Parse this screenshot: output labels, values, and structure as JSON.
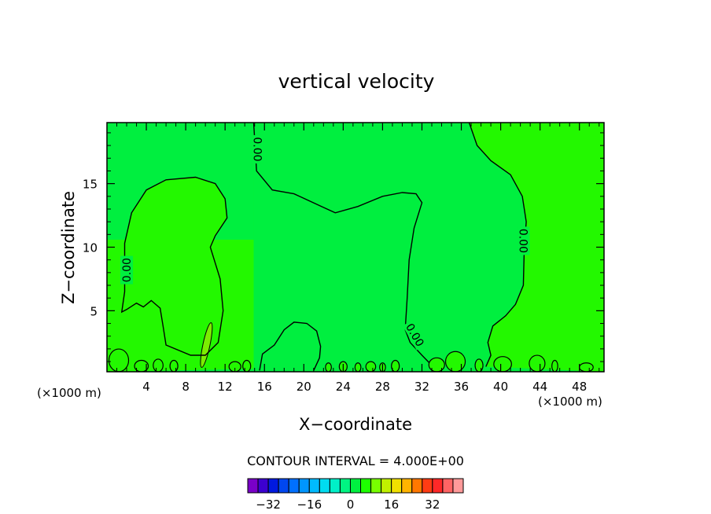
{
  "chart_data": {
    "type": "contour",
    "title": "vertical velocity",
    "xlabel": "X−coordinate",
    "ylabel": "Z−coordinate",
    "x_unit": "(×1000 m)",
    "y_unit": "(×1000 m)",
    "xlim": [
      0,
      50.5
    ],
    "ylim": [
      0.2,
      19.8
    ],
    "x_ticks": [
      4,
      8,
      12,
      16,
      20,
      24,
      28,
      32,
      36,
      40,
      44,
      48
    ],
    "y_ticks": [
      5,
      10,
      15
    ],
    "contour_interval_text": "CONTOUR INTERVAL = 4.000E+00",
    "contour_labels": [
      "0.00",
      "0.00",
      "0.00",
      "0.00"
    ],
    "zero_contours": [
      {
        "name": "left-plume",
        "points": [
          [
            1.5,
            4.9
          ],
          [
            1.8,
            6.5
          ],
          [
            1.8,
            10.3
          ],
          [
            2.5,
            12.7
          ],
          [
            4.0,
            14.5
          ],
          [
            6.0,
            15.3
          ],
          [
            9.0,
            15.5
          ],
          [
            11.0,
            15.0
          ],
          [
            12.0,
            13.8
          ],
          [
            12.2,
            12.3
          ],
          [
            11.0,
            10.9
          ],
          [
            10.5,
            10.0
          ],
          [
            11.5,
            7.5
          ],
          [
            11.8,
            5.0
          ],
          [
            11.3,
            2.5
          ],
          [
            10.0,
            1.5
          ],
          [
            8.5,
            1.5
          ],
          [
            6.0,
            2.3
          ],
          [
            5.7,
            3.8
          ],
          [
            5.4,
            5.2
          ],
          [
            4.5,
            5.8
          ],
          [
            3.7,
            5.3
          ],
          [
            3.0,
            5.6
          ],
          [
            2.0,
            5.1
          ],
          [
            1.5,
            4.9
          ]
        ]
      },
      {
        "name": "upper-band",
        "points": [
          [
            14.9,
            19.8
          ],
          [
            15.2,
            16.0
          ],
          [
            16.8,
            14.5
          ],
          [
            19.0,
            14.2
          ],
          [
            21.8,
            13.2
          ],
          [
            23.2,
            12.7
          ],
          [
            25.5,
            13.2
          ],
          [
            28.0,
            14.0
          ],
          [
            30.0,
            14.3
          ],
          [
            31.4,
            14.2
          ],
          [
            32.0,
            13.5
          ],
          [
            31.2,
            11.5
          ],
          [
            30.7,
            9.0
          ],
          [
            30.5,
            6.0
          ],
          [
            30.3,
            3.5
          ],
          [
            30.8,
            2.5
          ],
          [
            32.0,
            1.5
          ],
          [
            33.0,
            0.7
          ]
        ]
      },
      {
        "name": "right-plume",
        "points": [
          [
            36.8,
            19.8
          ],
          [
            37.6,
            18.0
          ],
          [
            39.0,
            16.8
          ],
          [
            41.0,
            15.7
          ],
          [
            42.2,
            14.0
          ],
          [
            42.6,
            12.0
          ],
          [
            42.4,
            10.0
          ],
          [
            42.3,
            7.0
          ],
          [
            41.5,
            5.5
          ],
          [
            40.5,
            4.6
          ],
          [
            39.2,
            3.8
          ],
          [
            38.7,
            2.5
          ],
          [
            39.0,
            1.5
          ],
          [
            38.5,
            0.6
          ]
        ]
      },
      {
        "name": "surface-bubble",
        "points": [
          [
            15.5,
            0.3
          ],
          [
            15.8,
            1.6
          ],
          [
            17.0,
            2.3
          ],
          [
            18.0,
            3.5
          ],
          [
            19.0,
            4.1
          ],
          [
            20.3,
            4.0
          ],
          [
            21.3,
            3.4
          ],
          [
            21.7,
            2.2
          ],
          [
            21.6,
            1.3
          ],
          [
            21.0,
            0.3
          ]
        ]
      }
    ],
    "colorbar": {
      "ticks": [
        -32,
        -16,
        0,
        16,
        32
      ],
      "tick_labels": [
        "−32",
        "−16",
        "0",
        "16",
        "32"
      ],
      "colors": [
        "#7a00c8",
        "#3c00d0",
        "#0019e0",
        "#0047f0",
        "#0070ff",
        "#0096ff",
        "#00baff",
        "#00dcf0",
        "#00f0c8",
        "#00f582",
        "#00f040",
        "#1eff00",
        "#78ff00",
        "#c0f000",
        "#f0e000",
        "#ffb400",
        "#ff7800",
        "#ff3c14",
        "#ff2828",
        "#ff6464",
        "#ff9a9a"
      ]
    },
    "background_color": "#00ef3f",
    "positive_color": "#23f800",
    "strong_positive_color": "#7ced01",
    "grid": false,
    "legend_position": "bottom"
  }
}
